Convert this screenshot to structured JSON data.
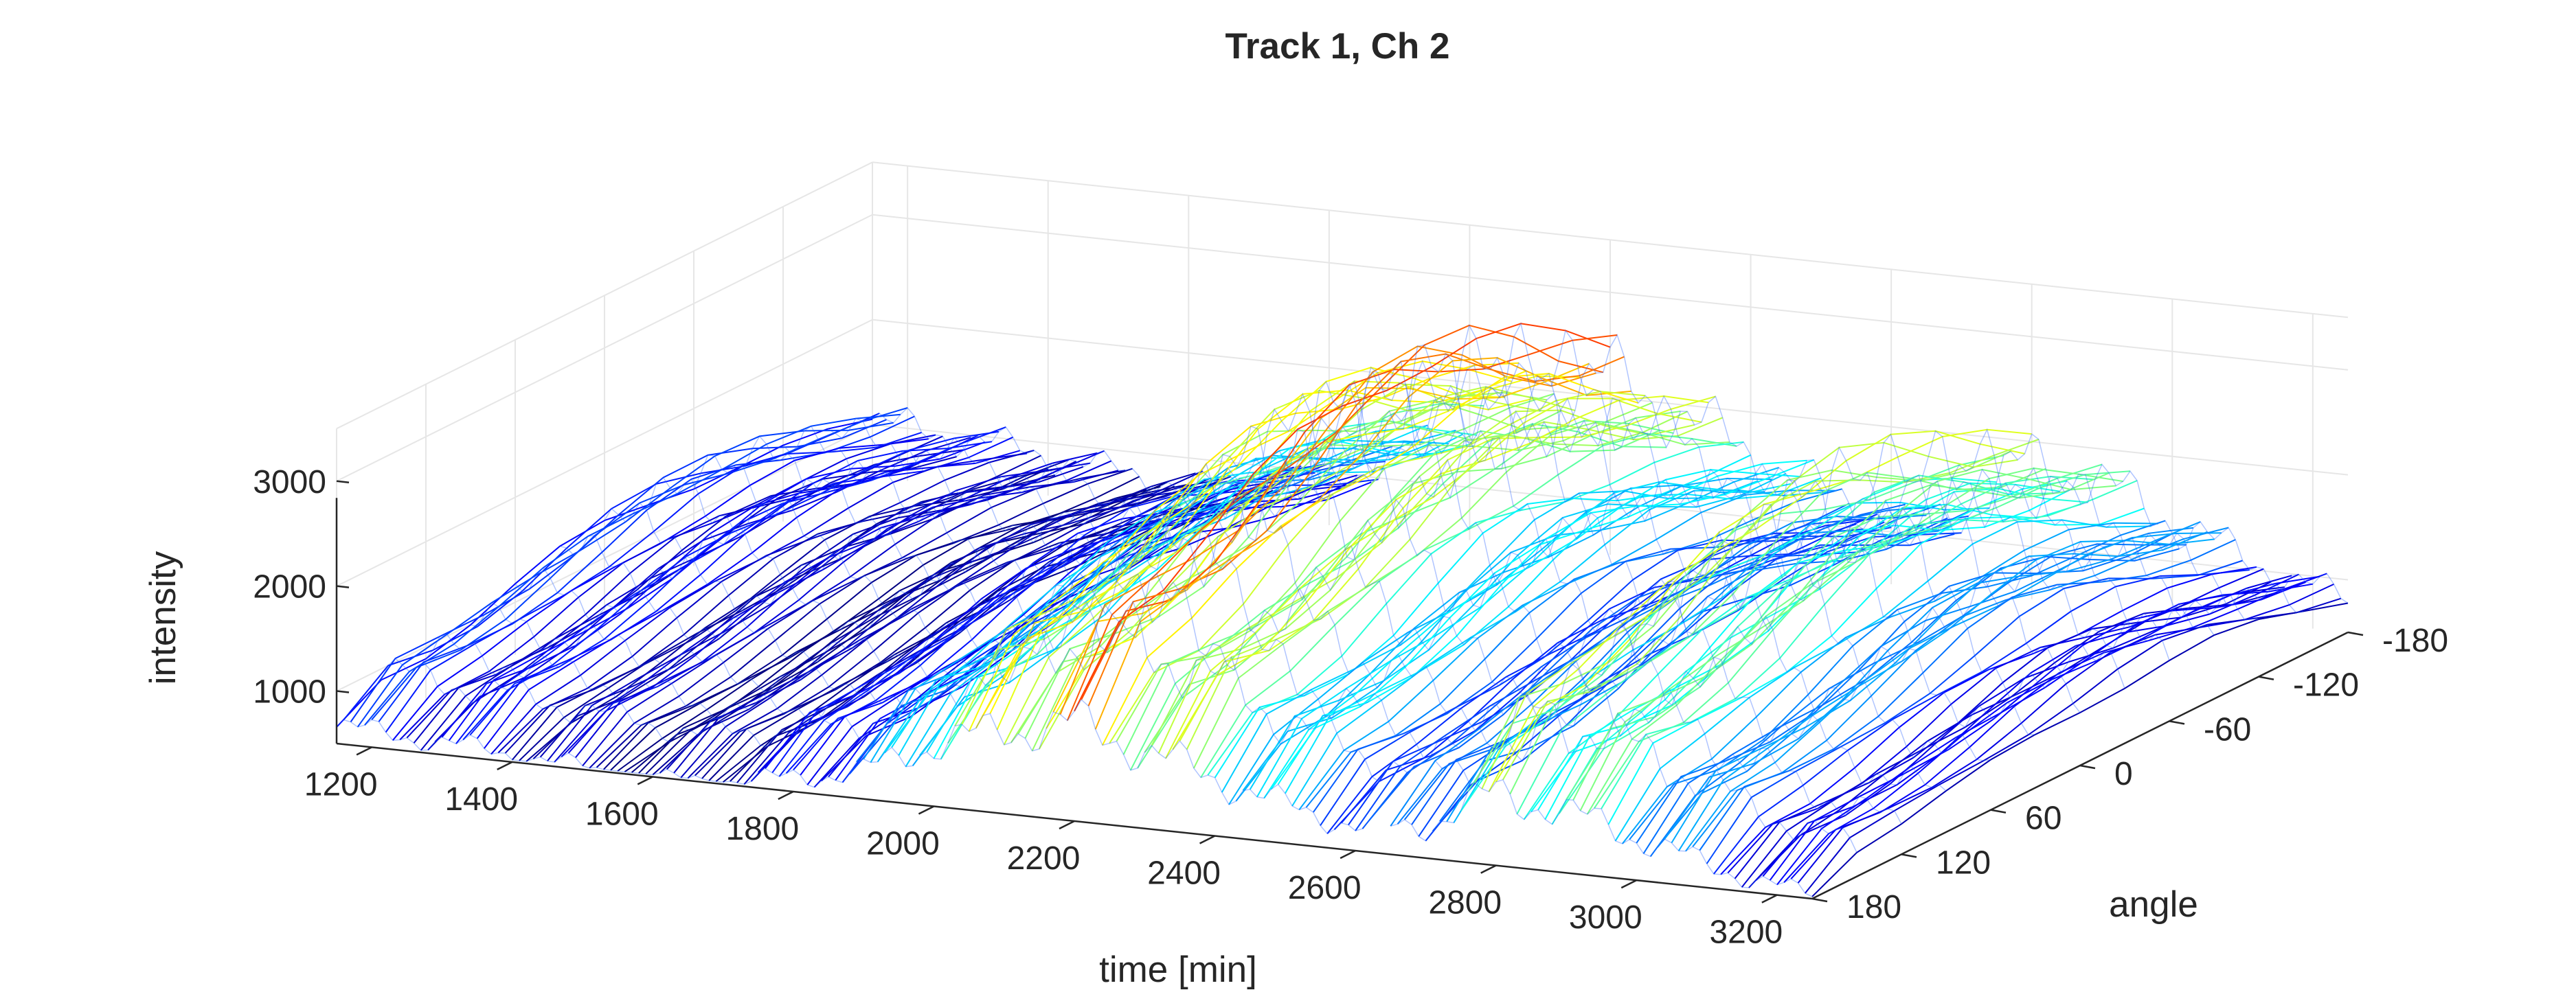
{
  "chart_data": {
    "type": "surface",
    "title": "Track 1, Ch 2",
    "xlabel": "time [min]",
    "ylabel": "angle",
    "zlabel": "intensity",
    "x_ticks": [
      "1200",
      "1400",
      "1600",
      "1800",
      "2000",
      "2200",
      "2400",
      "2600",
      "2800",
      "3000",
      "3200"
    ],
    "y_ticks": [
      "-180",
      "-120",
      "-60",
      "0",
      "60",
      "120",
      "180"
    ],
    "z_ticks": [
      "1000",
      "2000",
      "3000"
    ],
    "xlim": [
      1150,
      3250
    ],
    "ylim": [
      -180,
      180
    ],
    "zlim": [
      500,
      3500
    ],
    "colormap": "jet",
    "grid": true,
    "series_gap": {
      "start_min": 2620,
      "end_min": 2650
    },
    "profile": [
      {
        "time": 1150,
        "mean_intensity": 1400
      },
      {
        "time": 1300,
        "mean_intensity": 1300
      },
      {
        "time": 1450,
        "mean_intensity": 1150
      },
      {
        "time": 1600,
        "mean_intensity": 1000
      },
      {
        "time": 1750,
        "mean_intensity": 1200
      },
      {
        "time": 1900,
        "mean_intensity": 1600
      },
      {
        "time": 2000,
        "mean_intensity": 2300
      },
      {
        "time": 2100,
        "mean_intensity": 2700
      },
      {
        "time": 2200,
        "mean_intensity": 3000
      },
      {
        "time": 2350,
        "mean_intensity": 2400
      },
      {
        "time": 2500,
        "mean_intensity": 1800
      },
      {
        "time": 2620,
        "mean_intensity": 1500
      },
      {
        "time": 2700,
        "mean_intensity": 1700
      },
      {
        "time": 2800,
        "mean_intensity": 2500
      },
      {
        "time": 2950,
        "mean_intensity": 2100
      },
      {
        "time": 3100,
        "mean_intensity": 1500
      },
      {
        "time": 3250,
        "mean_intensity": 1100
      }
    ],
    "colors": {
      "low": "#0000c8",
      "mid_low": "#00c8ff",
      "mid": "#ffff00",
      "high": "#e00000"
    }
  }
}
